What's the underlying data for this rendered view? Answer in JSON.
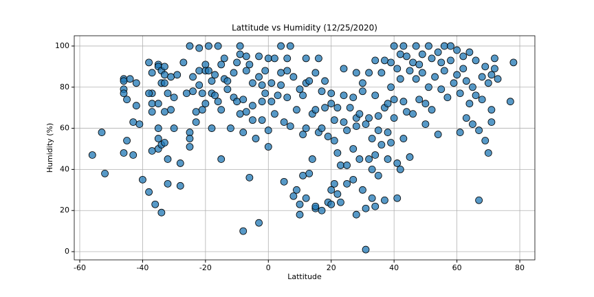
{
  "chart_data": {
    "type": "scatter",
    "title": "Lattitude vs Humidity (12/25/2020)",
    "x_label": "Lattitude",
    "y_label": "Humidity (%)",
    "color": "#1f77b4",
    "grid": true,
    "xlim": [
      -61.75,
      84.8
    ],
    "ylim": [
      -4,
      105
    ],
    "xticks": [
      -60,
      -40,
      -20,
      0,
      20,
      40,
      60,
      80
    ],
    "yticks": [
      0,
      20,
      40,
      60,
      80,
      100
    ],
    "x": [
      -56,
      -53,
      -52,
      -46,
      -46,
      -46,
      -46,
      -45,
      -45,
      -46,
      -44,
      -43,
      -43,
      -42,
      -42,
      -41,
      -40,
      -38,
      -38,
      -37,
      -37,
      -38,
      -37,
      -37,
      -37,
      -36,
      -35,
      -35,
      -35,
      -35,
      -35,
      -35,
      -34,
      -34,
      -34,
      -34,
      -33,
      -33,
      -33,
      -33,
      -33,
      -32,
      -32,
      -32,
      -31,
      -31,
      -30,
      -30,
      -29,
      -28,
      -28,
      -27,
      -26,
      -25,
      -25,
      -25,
      -25,
      -24,
      -24,
      -23,
      -23,
      -22,
      -22,
      -22,
      -21,
      -21,
      -20,
      -20,
      -20,
      -19,
      -19,
      -18,
      -18,
      -18,
      -17,
      -17,
      -16,
      -16,
      -15,
      -15,
      -15,
      -14,
      -14,
      -13,
      -13,
      -12,
      -11,
      -11,
      -10,
      -10,
      -9,
      -9,
      -9,
      -8,
      -8,
      -8,
      -7,
      -7,
      -7,
      -6,
      -6,
      -5,
      -5,
      -5,
      -4,
      -3,
      -3,
      -3,
      -2,
      -2,
      -2,
      -1,
      -1,
      0,
      0,
      0,
      1,
      1,
      2,
      2,
      3,
      4,
      4,
      4,
      5,
      5,
      6,
      6,
      6,
      7,
      7,
      8,
      8,
      9,
      9,
      10,
      10,
      10,
      11,
      11,
      11,
      12,
      12,
      12,
      12,
      13,
      13,
      14,
      14,
      15,
      15,
      15,
      15,
      16,
      16,
      17,
      17,
      17,
      18,
      18,
      19,
      19,
      20,
      20,
      20,
      20,
      21,
      21,
      21,
      22,
      22,
      22,
      23,
      23,
      24,
      24,
      24,
      25,
      25,
      25,
      26,
      27,
      27,
      27,
      28,
      28,
      28,
      28,
      29,
      29,
      30,
      30,
      30,
      31,
      31,
      31,
      32,
      32,
      32,
      33,
      33,
      33,
      34,
      34,
      34,
      34,
      35,
      35,
      35,
      36,
      36,
      37,
      37,
      37,
      38,
      38,
      38,
      39,
      39,
      39,
      40,
      40,
      40,
      41,
      41,
      41,
      42,
      42,
      42,
      43,
      43,
      43,
      44,
      44,
      45,
      45,
      46,
      46,
      47,
      47,
      48,
      48,
      49,
      49,
      50,
      50,
      51,
      51,
      52,
      52,
      53,
      54,
      54,
      55,
      55,
      56,
      56,
      57,
      58,
      58,
      59,
      60,
      60,
      61,
      61,
      62,
      62,
      63,
      63,
      64,
      64,
      65,
      65,
      66,
      66,
      67,
      67,
      68,
      68,
      69,
      69,
      70,
      70,
      71,
      71,
      71,
      72,
      72,
      73,
      77,
      78
    ],
    "values": [
      47,
      58,
      38,
      84,
      83,
      79,
      77,
      74,
      54,
      48,
      84,
      63,
      47,
      82,
      71,
      62,
      35,
      29,
      92,
      87,
      77,
      77,
      72,
      68,
      49,
      23,
      91,
      90,
      72,
      60,
      55,
      50,
      19,
      52,
      88,
      82,
      90,
      86,
      82,
      68,
      53,
      77,
      45,
      33,
      85,
      69,
      75,
      60,
      86,
      43,
      32,
      92,
      77,
      100,
      58,
      55,
      51,
      85,
      78,
      68,
      63,
      99,
      88,
      81,
      77,
      69,
      91,
      88,
      72,
      100,
      88,
      83,
      77,
      60,
      86,
      76,
      100,
      73,
      91,
      69,
      45,
      94,
      84,
      83,
      79,
      60,
      87,
      75,
      92,
      73,
      100,
      96,
      67,
      74,
      58,
      10,
      95,
      88,
      68,
      91,
      36,
      82,
      71,
      64,
      55,
      95,
      85,
      14,
      81,
      73,
      64,
      88,
      77,
      59,
      51,
      94,
      82,
      73,
      94,
      67,
      76,
      100,
      87,
      81,
      34,
      63,
      94,
      88,
      75,
      100,
      61,
      85,
      27,
      30,
      69,
      18,
      23,
      79,
      76,
      37,
      57,
      82,
      94,
      60,
      26,
      83,
      38,
      67,
      45,
      87,
      69,
      21,
      22,
      94,
      58,
      78,
      60,
      20,
      83,
      70,
      56,
      24,
      77,
      72,
      30,
      23,
      54,
      33,
      64,
      70,
      48,
      28,
      42,
      24,
      89,
      76,
      63,
      59,
      42,
      33,
      70,
      75,
      50,
      35,
      18,
      87,
      65,
      61,
      45,
      67,
      82,
      78,
      30,
      62,
      1,
      21,
      87,
      65,
      45,
      55,
      40,
      26,
      93,
      76,
      47,
      22,
      66,
      59,
      37,
      87,
      52,
      93,
      70,
      25,
      72,
      58,
      45,
      92,
      80,
      53,
      100,
      74,
      65,
      89,
      26,
      43,
      96,
      84,
      40,
      100,
      73,
      55,
      95,
      68,
      88,
      46,
      92,
      67,
      100,
      84,
      91,
      74,
      96,
      87,
      72,
      62,
      100,
      80,
      94,
      69,
      85,
      97,
      57,
      92,
      79,
      100,
      88,
      75,
      100,
      93,
      82,
      98,
      86,
      58,
      77,
      95,
      89,
      83,
      65,
      97,
      72,
      80,
      62,
      93,
      76,
      25,
      59,
      85,
      74,
      90,
      54,
      48,
      82,
      86,
      63,
      69,
      89,
      94,
      84,
      73,
      92
    ]
  }
}
